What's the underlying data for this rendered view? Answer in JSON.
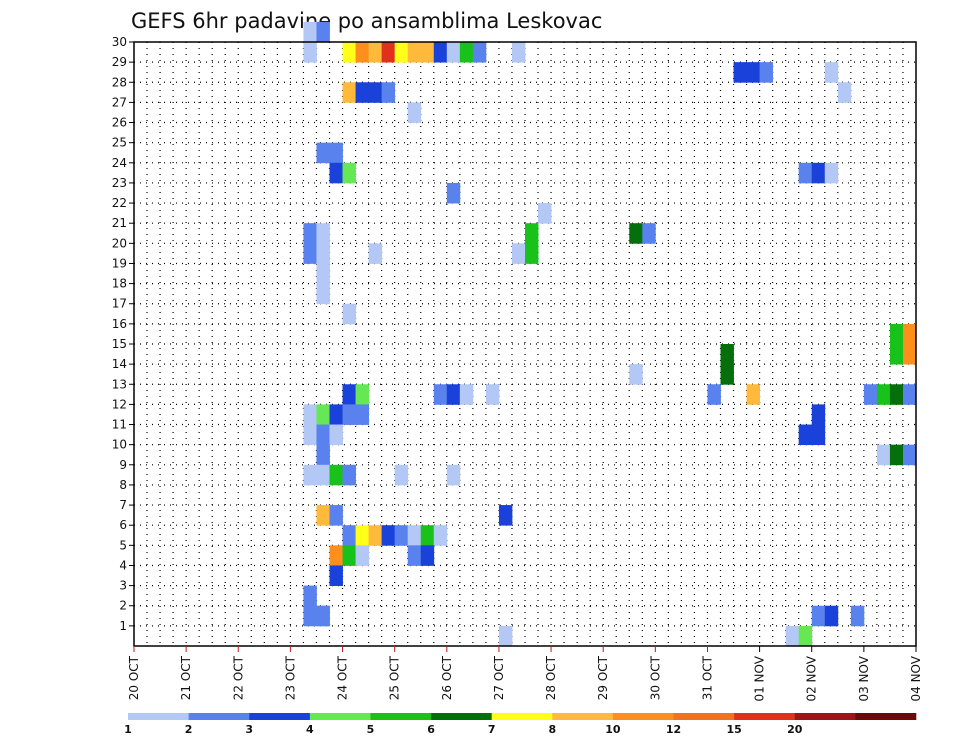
{
  "chart_data": {
    "type": "heatmap",
    "title": "GEFS 6hr padavine po ansamblima Leskovac",
    "xlabel": "",
    "ylabel": "",
    "x_tick_labels": [
      "20 OCT",
      "21 OCT",
      "22 OCT",
      "23 OCT",
      "24 OCT",
      "25 OCT",
      "26 OCT",
      "27 OCT",
      "28 OCT",
      "29 OCT",
      "30 OCT",
      "31 OCT",
      "01 NOV",
      "02 NOV",
      "03 NOV",
      "04 NOV"
    ],
    "y_tick_labels": [
      "1",
      "2",
      "3",
      "4",
      "5",
      "6",
      "7",
      "8",
      "9",
      "10",
      "11",
      "12",
      "13",
      "14",
      "15",
      "16",
      "17",
      "18",
      "19",
      "20",
      "21",
      "22",
      "23",
      "24",
      "25",
      "26",
      "27",
      "28",
      "29",
      "30"
    ],
    "x_range_steps": [
      0,
      60
    ],
    "steps_per_day": 4,
    "ylim": [
      0,
      30
    ],
    "grid": true,
    "colorbar": {
      "labels": [
        "1",
        "2",
        "3",
        "4",
        "5",
        "6",
        "7",
        "8",
        "10",
        "12",
        "15",
        "20"
      ],
      "colors": [
        "#b4c8f5",
        "#5a82ee",
        "#1a41d9",
        "#66e855",
        "#19c21b",
        "#056f0c",
        "#ffff1a",
        "#ffba3c",
        "#ff8f1c",
        "#f4721c",
        "#e0311c",
        "#a01418",
        "#6b0a0a"
      ]
    },
    "cells": [
      [
        13,
        1,
        1
      ],
      [
        13,
        2,
        1
      ],
      [
        14,
        1,
        3
      ],
      [
        13,
        29,
        0
      ],
      [
        13,
        30,
        0
      ],
      [
        14,
        30,
        1
      ],
      [
        16,
        29,
        6
      ],
      [
        17,
        29,
        8
      ],
      [
        18,
        29,
        7
      ],
      [
        19,
        29,
        10
      ],
      [
        20,
        29,
        6
      ],
      [
        21,
        29,
        7
      ],
      [
        22,
        29,
        7
      ],
      [
        23,
        29,
        2
      ],
      [
        24,
        29,
        0
      ],
      [
        25,
        29,
        4
      ],
      [
        26,
        29,
        1
      ],
      [
        29,
        29,
        0
      ],
      [
        46,
        28,
        2
      ],
      [
        47,
        28,
        2
      ],
      [
        48,
        28,
        1
      ],
      [
        53,
        28,
        0
      ],
      [
        16,
        27,
        7
      ],
      [
        17,
        27,
        2
      ],
      [
        18,
        27,
        2
      ],
      [
        19,
        27,
        1
      ],
      [
        54,
        27,
        0
      ],
      [
        21,
        26,
        0
      ],
      [
        14,
        24,
        1
      ],
      [
        15,
        24,
        1
      ],
      [
        15,
        23,
        2
      ],
      [
        16,
        23,
        3
      ],
      [
        51,
        23,
        1
      ],
      [
        52,
        23,
        2
      ],
      [
        53,
        23,
        0
      ],
      [
        24,
        22,
        1
      ],
      [
        31,
        21,
        0
      ],
      [
        13,
        20,
        1
      ],
      [
        14,
        20,
        0
      ],
      [
        30,
        20,
        4
      ],
      [
        38,
        20,
        5
      ],
      [
        39,
        20,
        1
      ],
      [
        13,
        19,
        1
      ],
      [
        14,
        19,
        0
      ],
      [
        18,
        19,
        0
      ],
      [
        29,
        19,
        0
      ],
      [
        30,
        19,
        4
      ],
      [
        14,
        18,
        0
      ],
      [
        14,
        17,
        0
      ],
      [
        16,
        16,
        0
      ],
      [
        58,
        15,
        4
      ],
      [
        59,
        15,
        8
      ],
      [
        58,
        14,
        4
      ],
      [
        59,
        14,
        8
      ],
      [
        45,
        14,
        5
      ],
      [
        45,
        13,
        5
      ],
      [
        38,
        13,
        0
      ],
      [
        16,
        12,
        2
      ],
      [
        17,
        12,
        3
      ],
      [
        23,
        12,
        1
      ],
      [
        24,
        12,
        2
      ],
      [
        25,
        12,
        0
      ],
      [
        27,
        12,
        0
      ],
      [
        44,
        12,
        1
      ],
      [
        47,
        12,
        7
      ],
      [
        56,
        12,
        1
      ],
      [
        57,
        12,
        4
      ],
      [
        58,
        12,
        5
      ],
      [
        59,
        12,
        1
      ],
      [
        13,
        11,
        0
      ],
      [
        14,
        11,
        3
      ],
      [
        15,
        11,
        2
      ],
      [
        16,
        11,
        1
      ],
      [
        17,
        11,
        1
      ],
      [
        52,
        11,
        2
      ],
      [
        13,
        10,
        0
      ],
      [
        14,
        10,
        1
      ],
      [
        15,
        10,
        0
      ],
      [
        51,
        10,
        2
      ],
      [
        52,
        10,
        2
      ],
      [
        14,
        9,
        1
      ],
      [
        57,
        9,
        0
      ],
      [
        58,
        9,
        5
      ],
      [
        59,
        9,
        1
      ],
      [
        13,
        8,
        0
      ],
      [
        14,
        8,
        0
      ],
      [
        15,
        8,
        4
      ],
      [
        16,
        8,
        1
      ],
      [
        20,
        8,
        0
      ],
      [
        24,
        8,
        0
      ],
      [
        14,
        6,
        7
      ],
      [
        15,
        6,
        1
      ],
      [
        28,
        6,
        2
      ],
      [
        16,
        5,
        1
      ],
      [
        17,
        5,
        6
      ],
      [
        18,
        5,
        7
      ],
      [
        19,
        5,
        2
      ],
      [
        20,
        5,
        1
      ],
      [
        21,
        5,
        0
      ],
      [
        22,
        5,
        4
      ],
      [
        23,
        5,
        0
      ],
      [
        15,
        4,
        8
      ],
      [
        16,
        4,
        4
      ],
      [
        17,
        4,
        0
      ],
      [
        21,
        4,
        1
      ],
      [
        22,
        4,
        2
      ],
      [
        15,
        3,
        2
      ],
      [
        14,
        1,
        1
      ],
      [
        52,
        1,
        1
      ],
      [
        53,
        1,
        2
      ],
      [
        55,
        1,
        1
      ],
      [
        28,
        0,
        0
      ],
      [
        50,
        0,
        0
      ],
      [
        51,
        0,
        3
      ]
    ]
  }
}
